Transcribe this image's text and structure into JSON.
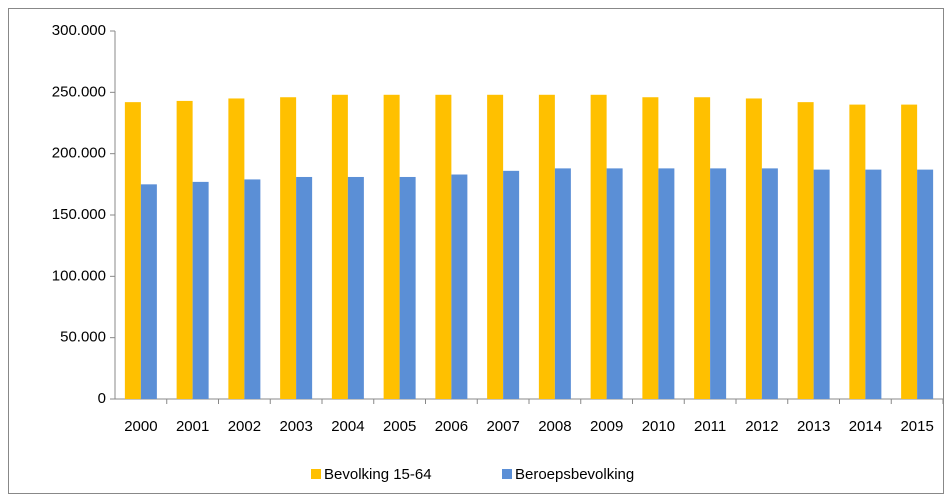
{
  "chart_data": {
    "type": "bar",
    "categories": [
      "2000",
      "2001",
      "2002",
      "2003",
      "2004",
      "2005",
      "2006",
      "2007",
      "2008",
      "2009",
      "2010",
      "2011",
      "2012",
      "2013",
      "2014",
      "2015"
    ],
    "series": [
      {
        "name": "Bevolking 15-64",
        "color": "#ffc000",
        "values": [
          242000,
          243000,
          245000,
          246000,
          248000,
          248000,
          248000,
          248000,
          248000,
          248000,
          246000,
          246000,
          245000,
          242000,
          240000,
          240000
        ]
      },
      {
        "name": "Beroepsbevolking",
        "color": "#5b8fd6",
        "values": [
          175000,
          177000,
          179000,
          181000,
          181000,
          181000,
          183000,
          186000,
          188000,
          188000,
          188000,
          188000,
          188000,
          187000,
          187000,
          187000
        ]
      }
    ],
    "ylim": [
      0,
      300000
    ],
    "yticks": [
      {
        "value": 0,
        "label": "0"
      },
      {
        "value": 50000,
        "label": "50.000"
      },
      {
        "value": 100000,
        "label": "100.000"
      },
      {
        "value": 150000,
        "label": "150.000"
      },
      {
        "value": 200000,
        "label": "200.000"
      },
      {
        "value": 250000,
        "label": "250.000"
      },
      {
        "value": 300000,
        "label": "300.000"
      }
    ],
    "legend": "bottom"
  }
}
